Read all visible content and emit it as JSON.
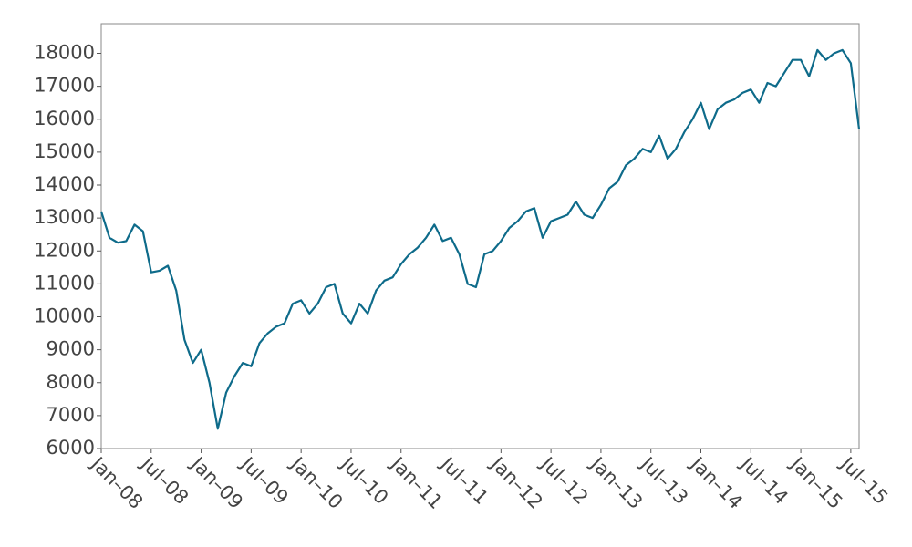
{
  "chart_data": {
    "type": "line",
    "x": [
      "2008-01",
      "2008-02",
      "2008-03",
      "2008-04",
      "2008-05",
      "2008-06",
      "2008-07",
      "2008-08",
      "2008-09",
      "2008-10",
      "2008-11",
      "2008-12",
      "2009-01",
      "2009-02",
      "2009-03",
      "2009-04",
      "2009-05",
      "2009-06",
      "2009-07",
      "2009-08",
      "2009-09",
      "2009-10",
      "2009-11",
      "2009-12",
      "2010-01",
      "2010-02",
      "2010-03",
      "2010-04",
      "2010-05",
      "2010-06",
      "2010-07",
      "2010-08",
      "2010-09",
      "2010-10",
      "2010-11",
      "2010-12",
      "2011-01",
      "2011-02",
      "2011-03",
      "2011-04",
      "2011-05",
      "2011-06",
      "2011-07",
      "2011-08",
      "2011-09",
      "2011-10",
      "2011-11",
      "2011-12",
      "2012-01",
      "2012-02",
      "2012-03",
      "2012-04",
      "2012-05",
      "2012-06",
      "2012-07",
      "2012-08",
      "2012-09",
      "2012-10",
      "2012-11",
      "2012-12",
      "2013-01",
      "2013-02",
      "2013-03",
      "2013-04",
      "2013-05",
      "2013-06",
      "2013-07",
      "2013-08",
      "2013-09",
      "2013-10",
      "2013-11",
      "2013-12",
      "2014-01",
      "2014-02",
      "2014-03",
      "2014-04",
      "2014-05",
      "2014-06",
      "2014-07",
      "2014-08",
      "2014-09",
      "2014-10",
      "2014-11",
      "2014-12",
      "2015-01",
      "2015-02",
      "2015-03",
      "2015-04",
      "2015-05",
      "2015-06",
      "2015-07",
      "2015-08"
    ],
    "series": [
      {
        "color": "#0e6b8a",
        "values": [
          13200,
          12400,
          12250,
          12300,
          12800,
          12600,
          11350,
          11400,
          11550,
          10800,
          9300,
          8600,
          9000,
          8000,
          6600,
          7700,
          8200,
          8600,
          8500,
          9200,
          9500,
          9700,
          9800,
          10400,
          10500,
          10100,
          10400,
          10900,
          11000,
          10100,
          9800,
          10400,
          10100,
          10800,
          11100,
          11200,
          11600,
          11900,
          12100,
          12400,
          12800,
          12300,
          12400,
          11900,
          11000,
          10900,
          11900,
          12000,
          12300,
          12700,
          12900,
          13200,
          13300,
          12400,
          12900,
          13000,
          13100,
          13500,
          13100,
          13000,
          13400,
          13900,
          14100,
          14600,
          14800,
          15100,
          15000,
          15500,
          14800,
          15100,
          15600,
          16000,
          16500,
          15700,
          16300,
          16500,
          16600,
          16800,
          16900,
          16500,
          17100,
          17000,
          17400,
          17800,
          17800,
          17300,
          18100,
          17800,
          18000,
          18100,
          17700,
          15700
        ]
      }
    ],
    "xlim": [
      "2008-01",
      "2015-08"
    ],
    "xticks": [
      {
        "value": "2008-01",
        "label": "Jan–08"
      },
      {
        "value": "2008-07",
        "label": "Jul–08"
      },
      {
        "value": "2009-01",
        "label": "Jan–09"
      },
      {
        "value": "2009-07",
        "label": "Jul–09"
      },
      {
        "value": "2010-01",
        "label": "Jan–10"
      },
      {
        "value": "2010-07",
        "label": "Jul–10"
      },
      {
        "value": "2011-01",
        "label": "Jan–11"
      },
      {
        "value": "2011-07",
        "label": "Jul–11"
      },
      {
        "value": "2012-01",
        "label": "Jan–12"
      },
      {
        "value": "2012-07",
        "label": "Jul–12"
      },
      {
        "value": "2013-01",
        "label": "Jan–13"
      },
      {
        "value": "2013-07",
        "label": "Jul–13"
      },
      {
        "value": "2014-01",
        "label": "Jan–14"
      },
      {
        "value": "2014-07",
        "label": "Jul–14"
      },
      {
        "value": "2015-01",
        "label": "Jan–15"
      },
      {
        "value": "2015-07",
        "label": "Jul–15"
      }
    ],
    "ylim": [
      6000,
      18900
    ],
    "yticks": [
      6000,
      7000,
      8000,
      9000,
      10000,
      11000,
      12000,
      13000,
      14000,
      15000,
      16000,
      17000,
      18000
    ]
  }
}
